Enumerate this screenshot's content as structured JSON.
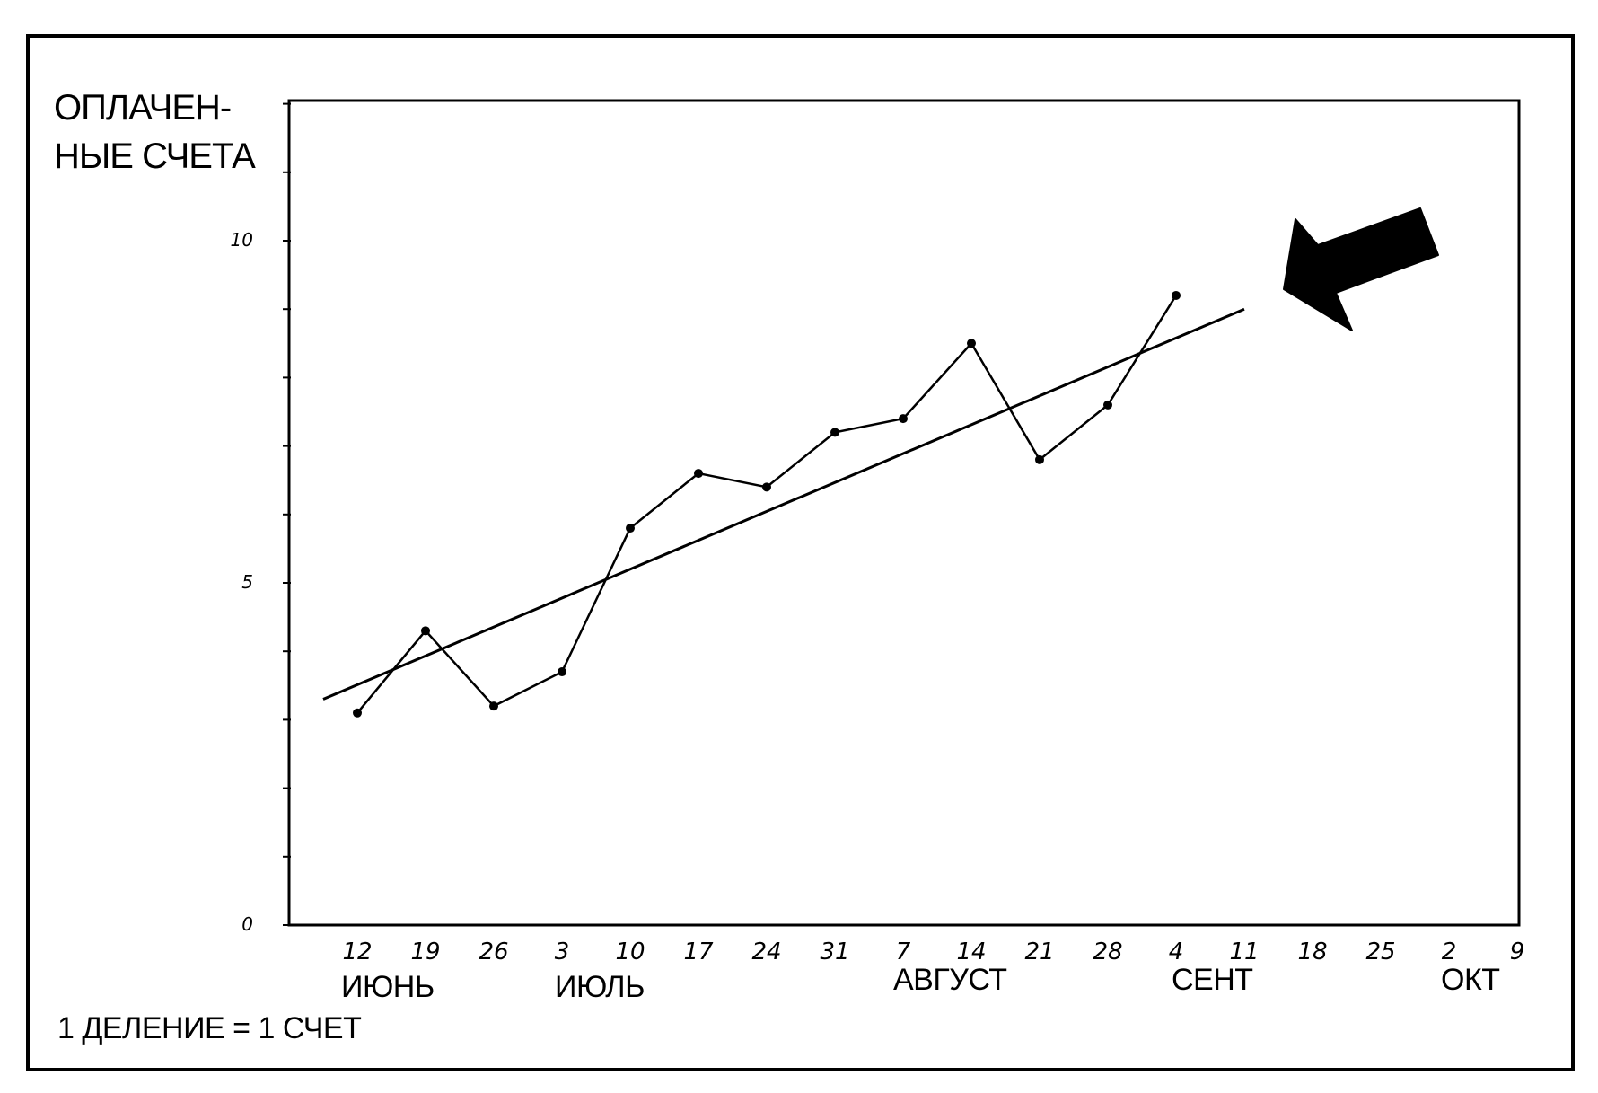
{
  "chart_data": {
    "type": "line",
    "ylabel_lines": [
      "ОПЛАЧЕН-",
      "НЫЕ СЧЕТА"
    ],
    "footnote": "1 ДЕЛЕНИЕ = 1 СЧЕТ",
    "ylim": [
      0,
      12
    ],
    "y_ticks": [
      "0",
      "5",
      "10"
    ],
    "y_tick_values": [
      0,
      5,
      10
    ],
    "minor_tick_step": 1,
    "x_tick_labels": [
      "12",
      "19",
      "26",
      "3",
      "10",
      "17",
      "24",
      "31",
      "7",
      "14",
      "21",
      "28",
      "4",
      "11",
      "18",
      "25",
      "2",
      "9"
    ],
    "months": [
      {
        "label": "ИЮНЬ",
        "at_index": 0
      },
      {
        "label": "ИЮЛЬ",
        "at_index": 3
      },
      {
        "label": "АВГУСТ",
        "at_index": 8
      },
      {
        "label": "СЕНТ",
        "at_index": 12
      },
      {
        "label": "ОКТ",
        "at_index": 16
      }
    ],
    "series": [
      {
        "values": [
          3.1,
          4.3,
          3.2,
          3.7,
          5.8,
          6.6,
          6.4,
          7.2,
          7.4,
          8.5,
          6.8,
          7.6,
          9.2
        ]
      }
    ],
    "trend": {
      "x_start": -0.5,
      "y_start": 3.3,
      "x_end": 13.0,
      "y_end": 9.0
    },
    "annotation": "arrow pointing at trend line end"
  }
}
